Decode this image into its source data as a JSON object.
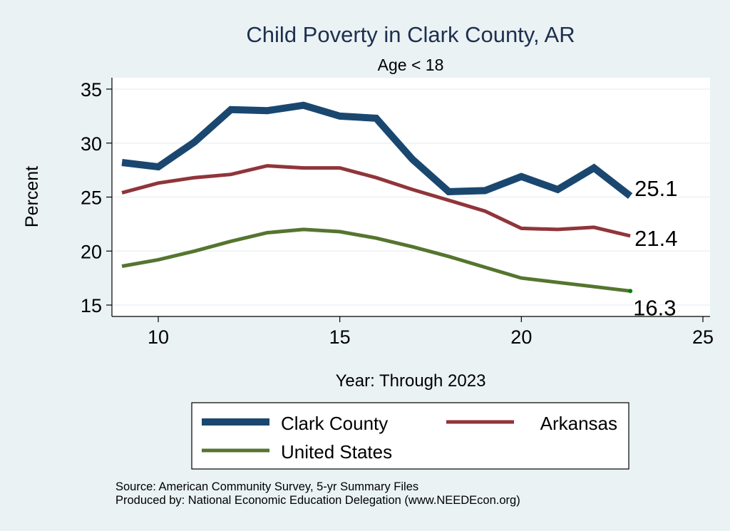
{
  "chart_data": {
    "type": "line",
    "title": "Child Poverty in Clark County, AR",
    "subtitle": "Age < 18",
    "xlabel": "Year: Through 2023",
    "ylabel": "Percent",
    "xlim": [
      8.7,
      25.2
    ],
    "ylim": [
      14,
      36.1
    ],
    "xticks": [
      10,
      15,
      20,
      25
    ],
    "yticks": [
      15,
      20,
      25,
      30,
      35
    ],
    "grid": true,
    "x": [
      9,
      10,
      11,
      12,
      13,
      14,
      15,
      16,
      17,
      18,
      19,
      20,
      21,
      22,
      23
    ],
    "series": [
      {
        "name": "Clark County",
        "color": "#1a476f",
        "values": [
          28.2,
          27.8,
          30.1,
          33.1,
          33.0,
          33.5,
          32.5,
          32.3,
          28.5,
          25.5,
          25.6,
          26.9,
          25.7,
          27.7,
          25.1
        ],
        "end_label": "25.1"
      },
      {
        "name": "Arkansas",
        "color": "#90353b",
        "values": [
          25.4,
          26.3,
          26.8,
          27.1,
          27.9,
          27.7,
          27.7,
          26.8,
          25.7,
          24.7,
          23.7,
          22.1,
          22.0,
          22.2,
          21.4
        ],
        "end_label": "21.4"
      },
      {
        "name": "United States",
        "color": "#55752f",
        "values": [
          18.6,
          19.2,
          20.0,
          20.9,
          21.7,
          22.0,
          21.8,
          21.2,
          20.4,
          19.5,
          18.5,
          17.5,
          17.1,
          16.7,
          16.3
        ],
        "end_label": "16.3"
      }
    ],
    "legend": {
      "position": "bottom",
      "entries": [
        "Clark County",
        "Arkansas",
        "United States"
      ]
    },
    "notes": [
      "Source: American Community Survey, 5-yr Summary Files",
      "Produced by: National Economic Education Delegation (www.NEEDEcon.org)"
    ]
  },
  "colors": {
    "background": "#eaf2f3",
    "plot_background": "#ffffff",
    "title": "#1e2f50",
    "grid": "#eaf2f3"
  }
}
